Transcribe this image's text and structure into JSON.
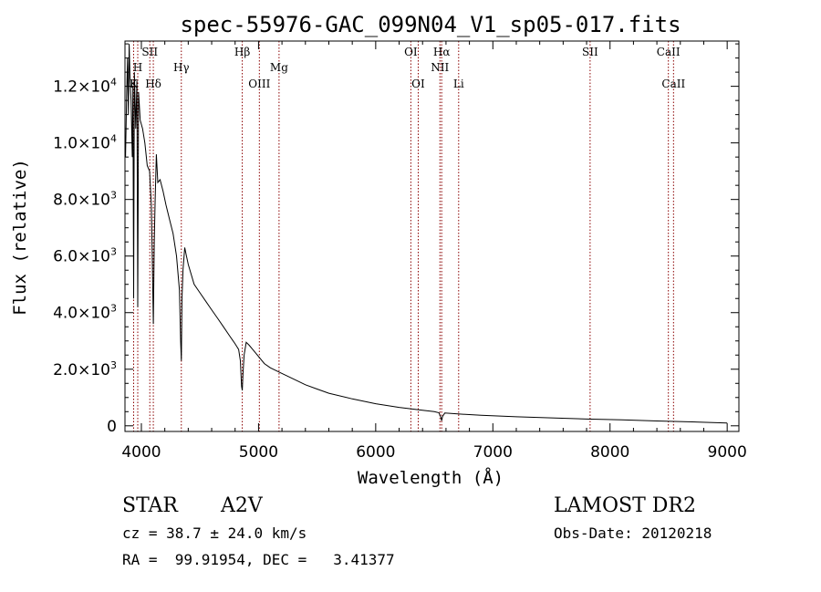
{
  "chart_data": {
    "type": "line",
    "title": "spec-55976-GAC_099N04_V1_sp05-017.fits",
    "xlabel": "Wavelength (Å)",
    "ylabel": "Flux (relative)",
    "xlim": [
      3860,
      9100
    ],
    "ylim": [
      -200,
      13600
    ],
    "grid": false,
    "x_ticks": [
      {
        "value": 4000,
        "label": "4000"
      },
      {
        "value": 5000,
        "label": "5000"
      },
      {
        "value": 6000,
        "label": "6000"
      },
      {
        "value": 7000,
        "label": "7000"
      },
      {
        "value": 8000,
        "label": "8000"
      },
      {
        "value": 9000,
        "label": "9000"
      }
    ],
    "y_ticks": [
      {
        "value": 0,
        "mant": "0",
        "exp": ""
      },
      {
        "value": 2000,
        "mant": "2.0×10",
        "exp": "3"
      },
      {
        "value": 4000,
        "mant": "4.0×10",
        "exp": "3"
      },
      {
        "value": 6000,
        "mant": "6.0×10",
        "exp": "3"
      },
      {
        "value": 8000,
        "mant": "8.0×10",
        "exp": "3"
      },
      {
        "value": 10000,
        "mant": "1.0×10",
        "exp": "4"
      },
      {
        "value": 12000,
        "mant": "1.2×10",
        "exp": "4"
      }
    ],
    "lines": [
      {
        "label": "K",
        "x": 3934,
        "row": 3
      },
      {
        "label": "H",
        "x": 3969,
        "row": 2
      },
      {
        "label": "SII",
        "x": 4072,
        "row": 1
      },
      {
        "label": "Hδ",
        "x": 4102,
        "row": 3
      },
      {
        "label": "Hγ",
        "x": 4341,
        "row": 2
      },
      {
        "label": "Hβ",
        "x": 4861,
        "row": 1
      },
      {
        "label": "OIII",
        "x": 5007,
        "row": 3
      },
      {
        "label": "Mg",
        "x": 5175,
        "row": 2
      },
      {
        "label": "OI",
        "x": 6300,
        "row": 1
      },
      {
        "label": "OI",
        "x": 6363,
        "row": 3
      },
      {
        "label": "NII",
        "x": 6548,
        "row": 2
      },
      {
        "label": "Hα",
        "x": 6563,
        "row": 1
      },
      {
        "label": "Li",
        "x": 6708,
        "row": 3
      },
      {
        "label": "SII",
        "x": 7830,
        "row": 1
      },
      {
        "label": "CaII",
        "x": 8498,
        "row": 1
      },
      {
        "label": "CaII",
        "x": 8542,
        "row": 3
      }
    ],
    "series": [
      {
        "x": [
          3865,
          3875,
          3882,
          3889,
          3896,
          3903,
          3912,
          3922,
          3928,
          3934,
          3940,
          3952,
          3962,
          3969,
          3976,
          3990,
          4010,
          4030,
          4050,
          4070,
          4085,
          4093,
          4102,
          4110,
          4118,
          4128,
          4140,
          4160,
          4185,
          4210,
          4240,
          4270,
          4300,
          4325,
          4335,
          4341,
          4347,
          4355,
          4370,
          4385,
          4400,
          4450,
          4500,
          4550,
          4600,
          4650,
          4700,
          4750,
          4800,
          4830,
          4845,
          4855,
          4861,
          4867,
          4877,
          4895,
          4920,
          4950,
          5000,
          5050,
          5100,
          5150,
          5200,
          5300,
          5400,
          5500,
          5600,
          5800,
          6000,
          6200,
          6400,
          6500,
          6540,
          6556,
          6563,
          6570,
          6590,
          6700,
          6900,
          7200,
          7500,
          7800,
          8100,
          8400,
          8700,
          9000
        ],
        "y": [
          9500,
          11800,
          13000,
          11000,
          13500,
          12300,
          11500,
          9500,
          12000,
          4500,
          12500,
          10500,
          12200,
          4200,
          11800,
          10800,
          10500,
          10000,
          9200,
          9000,
          7800,
          6000,
          3600,
          6500,
          8000,
          9600,
          8600,
          8700,
          8300,
          7800,
          7300,
          6800,
          6000,
          4800,
          3000,
          2300,
          4500,
          5500,
          6300,
          6000,
          5700,
          5000,
          4700,
          4400,
          4100,
          3800,
          3500,
          3200,
          2900,
          2700,
          2300,
          1400,
          1250,
          1800,
          2500,
          2950,
          2850,
          2700,
          2450,
          2200,
          2050,
          1950,
          1850,
          1650,
          1450,
          1300,
          1150,
          950,
          780,
          650,
          550,
          500,
          460,
          300,
          180,
          330,
          450,
          420,
          370,
          320,
          280,
          240,
          210,
          170,
          140,
          100
        ]
      }
    ]
  },
  "footer": {
    "object_type": "STAR",
    "subclass": "A2V",
    "cz_text": "cz = 38.7 ± 24.0 km/s",
    "coords_text": "RA =  99.91954, DEC =   3.41377",
    "survey": "LAMOST DR2",
    "obs_date": "Obs-Date: 20120218"
  },
  "colors": {
    "axis": "#000000",
    "spectrum": "#000000",
    "line_marker": "#8b0000"
  }
}
